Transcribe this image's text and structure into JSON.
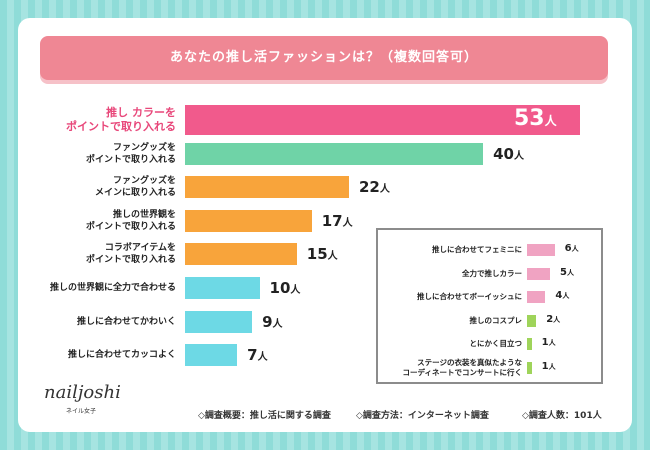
{
  "title": "あなたの推し活ファッションは？（複数回答可）",
  "chart_data": {
    "type": "bar",
    "orientation": "horizontal",
    "unit": "人",
    "xlim": [
      0,
      53
    ],
    "colors": {
      "pink": "#f15a8c",
      "green": "#6fd3a7",
      "orange": "#f8a43b",
      "cyan": "#6dd9e5"
    },
    "categories": [
      "推し カラーを\nポイントで取り入れる",
      "ファングッズを\nポイントで取り入れる",
      "ファングッズを\nメインに取り入れる",
      "推しの世界観を\nポイントで取り入れる",
      "コラボアイテムを\nポイントで取り入れる",
      "推しの世界観に全力で合わせる",
      "推しに合わせてかわいく",
      "推しに合わせてカッコよく"
    ],
    "values": [
      53,
      40,
      22,
      17,
      15,
      10,
      9,
      7
    ],
    "bar_colors": [
      "pink",
      "green",
      "orange",
      "orange",
      "orange",
      "cyan",
      "cyan",
      "cyan"
    ]
  },
  "inset_chart": {
    "type": "bar",
    "orientation": "horizontal",
    "unit": "人",
    "colors": {
      "pink": "#f0a3c2",
      "green": "#9fd45a"
    },
    "categories": [
      "推しに合わせてフェミニに",
      "全力で推しカラー",
      "推しに合わせてボーイッシュに",
      "推しのコスプレ",
      "とにかく目立つ",
      "ステージの衣装を真似たような\nコーディネートでコンサートに行く"
    ],
    "values": [
      6,
      5,
      4,
      2,
      1,
      1
    ],
    "bar_colors": [
      "pink",
      "pink",
      "pink",
      "green",
      "green",
      "green"
    ]
  },
  "logo": {
    "text": "nailjoshi",
    "subtitle": "ネイル女子"
  },
  "footer": {
    "survey_summary": "◇調査概要：推し活に関する調査",
    "survey_method": "◇調査方法：インターネット調査",
    "respondents": "◇調査人数：101人"
  }
}
